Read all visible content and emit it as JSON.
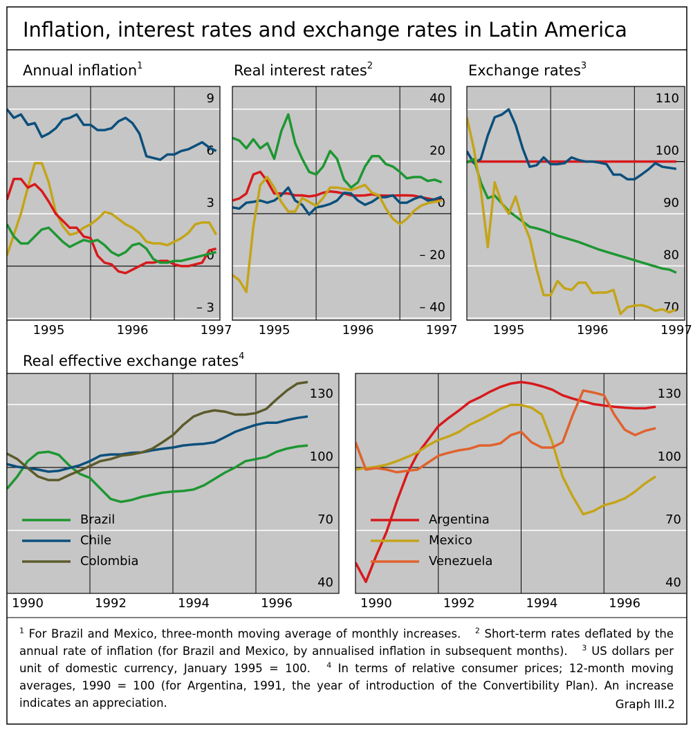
{
  "title": "Inflation, interest rates and exchange rates in Latin America",
  "chart_data": [
    {
      "type": "line",
      "title": "Annual inflation",
      "title_note": "1",
      "x": [
        1995,
        1995.083,
        1995.167,
        1995.25,
        1995.333,
        1995.417,
        1995.5,
        1995.583,
        1995.667,
        1995.75,
        1995.833,
        1995.917,
        1996,
        1996.083,
        1996.167,
        1996.25,
        1996.333,
        1996.417,
        1996.5,
        1996.583,
        1996.667,
        1996.75,
        1996.833,
        1996.917,
        1997,
        1997.083,
        1997.167,
        1997.25,
        1997.333,
        1997.417,
        1997.5
      ],
      "xlim": [
        1995,
        1997.545
      ],
      "xticks": [
        {
          "value": 1995.5,
          "label": "1995"
        },
        {
          "value": 1996.5,
          "label": "1996"
        },
        {
          "value": 1997.5,
          "label": "1997"
        }
      ],
      "xgrid": [
        1996,
        1997
      ],
      "ylim": [
        -3.1,
        10.3
      ],
      "yticks": [
        9,
        6,
        3,
        0,
        {
          "value": -3,
          "label": "– 3"
        }
      ],
      "baseline": 0,
      "series": [
        {
          "color": "#0b4f7c",
          "values": [
            9.0,
            8.5,
            8.7,
            8.1,
            8.2,
            7.4,
            7.6,
            7.9,
            8.4,
            8.5,
            8.7,
            8.1,
            8.1,
            7.8,
            7.8,
            7.9,
            8.3,
            8.5,
            8.2,
            7.6,
            6.3,
            6.2,
            6.1,
            6.4,
            6.4,
            6.6,
            6.7,
            6.9,
            7.1,
            6.8,
            6.6
          ]
        },
        {
          "color": "#c4a418",
          "values": [
            0.6,
            1.8,
            3.0,
            4.5,
            5.9,
            5.9,
            4.8,
            3.1,
            2.3,
            1.8,
            1.9,
            2.2,
            2.4,
            2.7,
            3.1,
            3.0,
            2.7,
            2.4,
            2.2,
            1.9,
            1.4,
            1.3,
            1.3,
            1.2,
            1.4,
            1.6,
            1.9,
            2.4,
            2.5,
            2.5,
            1.8
          ]
        },
        {
          "color": "#d7191c",
          "values": [
            3.8,
            5.0,
            5.0,
            4.5,
            4.7,
            4.3,
            3.7,
            3.0,
            2.6,
            2.2,
            2.2,
            1.7,
            1.6,
            0.6,
            0.2,
            0.1,
            -0.3,
            -0.4,
            -0.2,
            0.0,
            0.2,
            0.2,
            0.3,
            0.3,
            0.1,
            0.0,
            0.0,
            0.1,
            0.2,
            0.9,
            1.0
          ]
        },
        {
          "color": "#1e9632",
          "values": [
            2.4,
            1.7,
            1.3,
            1.3,
            1.7,
            2.1,
            2.2,
            1.8,
            1.4,
            1.1,
            1.3,
            1.5,
            1.4,
            1.5,
            1.2,
            0.8,
            0.6,
            0.8,
            1.2,
            1.3,
            1.0,
            0.4,
            0.2,
            0.2,
            0.3,
            0.3,
            0.4,
            0.5,
            0.6,
            0.7,
            0.8
          ]
        }
      ]
    },
    {
      "type": "line",
      "title": "Real interest rates",
      "title_note": "2",
      "x": [
        1995,
        1995.083,
        1995.167,
        1995.25,
        1995.333,
        1995.417,
        1995.5,
        1995.583,
        1995.667,
        1995.75,
        1995.833,
        1995.917,
        1996,
        1996.083,
        1996.167,
        1996.25,
        1996.333,
        1996.417,
        1996.5,
        1996.583,
        1996.667,
        1996.75,
        1996.833,
        1996.917,
        1997,
        1997.083,
        1997.167,
        1997.25,
        1997.333,
        1997.417,
        1997.5
      ],
      "xlim": [
        1995,
        1997.61
      ],
      "xticks": [
        {
          "value": 1995.5,
          "label": "1995"
        },
        {
          "value": 1996.5,
          "label": "1996"
        },
        {
          "value": 1997.5,
          "label": "1997"
        }
      ],
      "xgrid": [
        1996,
        1997
      ],
      "ylim": [
        -40.8,
        48.7
      ],
      "yticks": [
        40,
        20,
        0,
        {
          "value": -20,
          "label": "– 20"
        },
        {
          "value": -40,
          "label": "– 40"
        }
      ],
      "baseline": 0,
      "series": [
        {
          "color": "#1e9632",
          "values": [
            29,
            28,
            25,
            28.5,
            25,
            27,
            21,
            31.5,
            38,
            27,
            21,
            16,
            15,
            18,
            24,
            21,
            13,
            10,
            12,
            18,
            22,
            22,
            19,
            18,
            16,
            13.5,
            14,
            14,
            12.5,
            13,
            12
          ]
        },
        {
          "color": "#d7191c",
          "values": [
            5,
            5.8,
            7.7,
            15,
            16,
            12.4,
            7.7,
            7.7,
            7.7,
            7,
            7,
            6.6,
            7,
            8,
            8.5,
            8.2,
            7.7,
            7,
            6.9,
            7,
            7.4,
            7,
            6.9,
            6.9,
            7,
            7,
            6.9,
            6.3,
            5.8,
            5.3,
            5
          ]
        },
        {
          "color": "#0b4f7c",
          "values": [
            2.4,
            1.9,
            4.2,
            4.5,
            5,
            4.2,
            5,
            7,
            10,
            5,
            3.4,
            -0.3,
            2.4,
            2.9,
            3.7,
            5,
            8,
            7.7,
            5,
            3.4,
            4.5,
            6.3,
            6.3,
            7,
            4.2,
            4.2,
            5.6,
            6.6,
            5,
            5.5,
            6.5
          ]
        },
        {
          "color": "#c4a418",
          "values": [
            -23.5,
            -25.5,
            -30,
            -5,
            11,
            14,
            10,
            4.5,
            0.8,
            0.8,
            6,
            4.5,
            3,
            6,
            10,
            10,
            9.5,
            9,
            10,
            11,
            8,
            7,
            2,
            -2,
            -4,
            -2,
            1,
            3,
            4,
            4.5,
            5
          ]
        }
      ]
    },
    {
      "type": "line",
      "title": "Exchange rates",
      "title_note": "3",
      "x": [
        1995,
        1995.083,
        1995.167,
        1995.25,
        1995.333,
        1995.417,
        1995.5,
        1995.583,
        1995.667,
        1995.75,
        1995.833,
        1995.917,
        1996,
        1996.083,
        1996.167,
        1996.25,
        1996.333,
        1996.417,
        1996.5,
        1996.583,
        1996.667,
        1996.75,
        1996.833,
        1996.917,
        1997,
        1997.083,
        1997.167,
        1997.25,
        1997.333,
        1997.417,
        1997.5
      ],
      "xlim": [
        1995,
        1997.6
      ],
      "xticks": [
        {
          "value": 1995.5,
          "label": "1995"
        },
        {
          "value": 1996.5,
          "label": "1996"
        },
        {
          "value": 1997.5,
          "label": "1997"
        }
      ],
      "xgrid": [
        1996,
        1997
      ],
      "ylim": [
        69.6,
        114.4
      ],
      "yticks": [
        110,
        100,
        90,
        80,
        70
      ],
      "baseline": 100,
      "series": [
        {
          "color": "#d7191c",
          "values": [
            100,
            100,
            100,
            100,
            100,
            100,
            100,
            100,
            100,
            100,
            100,
            100,
            100,
            100,
            100,
            100,
            100,
            100,
            100,
            100,
            100,
            100,
            100,
            100,
            100,
            100,
            100,
            100,
            100,
            100,
            100
          ]
        },
        {
          "color": "#0b4f7c",
          "values": [
            102,
            99.7,
            100.5,
            105,
            108.5,
            109,
            110,
            107,
            102.5,
            99,
            99.3,
            100.8,
            99.5,
            99.5,
            99.7,
            100.8,
            100.3,
            100,
            100,
            99.8,
            99.5,
            97.5,
            97.5,
            96.6,
            96.6,
            97.5,
            98.5,
            99.7,
            99,
            98.8,
            98.6
          ]
        },
        {
          "color": "#1e9632",
          "values": [
            99.8,
            100.5,
            96,
            93,
            93.5,
            92,
            90.5,
            89.5,
            88.5,
            87.5,
            87.2,
            86.8,
            86.3,
            85.8,
            85.4,
            85,
            84.6,
            84.1,
            83.6,
            83.1,
            82.7,
            82.3,
            81.9,
            81.5,
            81.1,
            80.7,
            80.3,
            79.9,
            79.5,
            79.3,
            78.7
          ]
        },
        {
          "color": "#c4a418",
          "values": [
            108.5,
            102.5,
            94.6,
            83.6,
            96,
            92,
            90,
            93.3,
            88.6,
            85.3,
            79.4,
            74.4,
            74.4,
            77.1,
            75.7,
            75.4,
            76.8,
            76.8,
            74.8,
            74.9,
            74.9,
            75.4,
            70.8,
            72.1,
            72.4,
            72.5,
            72.1,
            71.4,
            71.7,
            71.1,
            71.7
          ]
        }
      ]
    },
    {
      "type": "line",
      "title": "Real effective exchange rates",
      "title_note": "4",
      "x": [
        1990,
        1990.25,
        1990.5,
        1990.75,
        1991,
        1991.25,
        1991.5,
        1991.75,
        1992,
        1992.25,
        1992.5,
        1992.75,
        1993,
        1993.25,
        1993.5,
        1993.75,
        1994,
        1994.25,
        1994.5,
        1994.75,
        1995,
        1995.25,
        1995.5,
        1995.75,
        1996,
        1996.25,
        1996.5,
        1996.75,
        1997,
        1997.25
      ],
      "xlim": [
        1990,
        1998
      ],
      "xticks": [
        {
          "value": 1990.5,
          "label": "1990"
        },
        {
          "value": 1992.5,
          "label": "1992"
        },
        {
          "value": 1994.5,
          "label": "1994"
        },
        {
          "value": 1996.5,
          "label": "1996"
        }
      ],
      "xgrid": [
        1992,
        1994,
        1996
      ],
      "ylim": [
        40,
        144.8
      ],
      "yticks": [
        130,
        100,
        70,
        40
      ],
      "baseline": 100,
      "legend": "lower left",
      "series": [
        {
          "name": "Brazil",
          "color": "#1e9632",
          "values": [
            89.8,
            95.7,
            103,
            107,
            107.5,
            106,
            101,
            97,
            95,
            90,
            85,
            83.6,
            84.5,
            86,
            87,
            88,
            88.5,
            88.8,
            89.5,
            91.5,
            94.5,
            97.5,
            100,
            103,
            104,
            105,
            107.5,
            109,
            110,
            110.5
          ]
        },
        {
          "name": "Chile",
          "color": "#0b4f7c",
          "values": [
            101.6,
            100.3,
            99.7,
            99,
            98,
            98.4,
            99.7,
            101,
            103,
            105.6,
            106.2,
            106.2,
            107,
            107.2,
            108.2,
            108.9,
            109.5,
            110.5,
            111,
            111.3,
            112,
            114.4,
            117,
            118.7,
            120.3,
            121.3,
            121.3,
            122.6,
            123.6,
            124.3
          ]
        },
        {
          "name": "Colombia",
          "color": "#5b5a2b",
          "values": [
            106.6,
            104,
            99.7,
            95.7,
            94,
            94,
            96.4,
            98.4,
            100.7,
            103,
            104,
            105.6,
            106.2,
            107.2,
            108.9,
            112,
            115.4,
            120.3,
            124.3,
            126.2,
            127.2,
            126.6,
            125.2,
            125.2,
            125.9,
            127.9,
            132.5,
            136.7,
            140,
            140.7
          ]
        }
      ]
    },
    {
      "type": "line",
      "x": [
        1990,
        1990.25,
        1990.5,
        1990.75,
        1991,
        1991.25,
        1991.5,
        1991.75,
        1992,
        1992.25,
        1992.5,
        1992.75,
        1993,
        1993.25,
        1993.5,
        1993.75,
        1994,
        1994.25,
        1994.5,
        1994.75,
        1995,
        1995.25,
        1995.5,
        1995.75,
        1996,
        1996.25,
        1996.5,
        1996.75,
        1997,
        1997.25
      ],
      "xlim": [
        1990,
        1998
      ],
      "xticks": [
        {
          "value": 1990.5,
          "label": "1990"
        },
        {
          "value": 1992.5,
          "label": "1992"
        },
        {
          "value": 1994.5,
          "label": "1994"
        },
        {
          "value": 1996.5,
          "label": "1996"
        }
      ],
      "xgrid": [
        1992,
        1994,
        1996
      ],
      "ylim": [
        40,
        144.8
      ],
      "yticks": [
        130,
        100,
        70,
        40
      ],
      "baseline": 100,
      "legend": "lower left",
      "series": [
        {
          "name": "Argentina",
          "color": "#d7191c",
          "values": [
            54.7,
            45.5,
            57.9,
            69.3,
            84,
            97,
            106.6,
            113.1,
            119.7,
            123.6,
            127.2,
            131.1,
            133.4,
            136.1,
            138.4,
            140,
            140.7,
            140,
            138.7,
            137.1,
            134.4,
            132.8,
            131.5,
            130.2,
            129.5,
            128.9,
            128.5,
            128.2,
            128.2,
            128.9
          ]
        },
        {
          "name": "Mexico",
          "color": "#c4a418",
          "values": [
            99,
            99.7,
            100.3,
            101.3,
            103,
            105,
            107.2,
            110.5,
            113.1,
            114.8,
            117,
            120.3,
            122.6,
            125.2,
            127.9,
            129.8,
            129.8,
            128.5,
            125.2,
            112,
            95.7,
            86,
            77.7,
            79.3,
            82,
            83.3,
            85.2,
            88.5,
            92.5,
            95.7
          ]
        },
        {
          "name": "Venezuela",
          "color": "#e0622e",
          "values": [
            112,
            99,
            99.7,
            99,
            97.7,
            98.4,
            99,
            102.3,
            105.6,
            107,
            108.2,
            108.9,
            110.5,
            110.5,
            111.5,
            115.4,
            117,
            112,
            109.5,
            109.5,
            112,
            125.2,
            136.7,
            135.7,
            134.4,
            125.2,
            118,
            115.4,
            117.5,
            118.7
          ]
        }
      ]
    }
  ],
  "footnotes": [
    {
      "mark": "1",
      "text": "For Brazil and Mexico, three-month moving average of monthly increases."
    },
    {
      "mark": "2",
      "text": "Short-term rates deflated by the annual rate of inflation (for Brazil and Mexico, by annualised inflation in subsequent months)."
    },
    {
      "mark": "3",
      "text": "US dollars per unit of domestic currency, January 1995 = 100."
    },
    {
      "mark": "4",
      "text": "In terms of relative consumer prices; 12-month moving averages, 1990 = 100 (for Argentina, 1991, the year of introduction of the Convertibility Plan). An increase indicates an appreciation."
    }
  ],
  "graph_label": "Graph III.2"
}
